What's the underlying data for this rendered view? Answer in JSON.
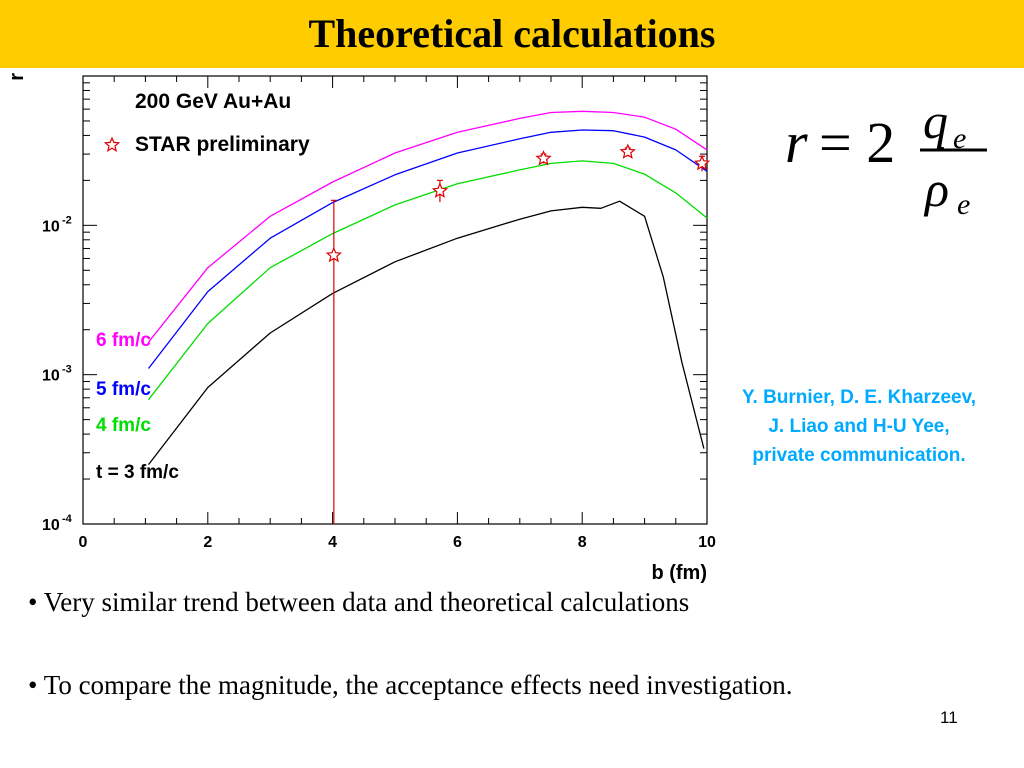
{
  "slide": {
    "title": "Theoretical calculations",
    "formula": {
      "lhs": "r",
      "equals": "= 2",
      "numerator": "q",
      "numerator_sub": "e",
      "denominator": "ρ",
      "denominator_sub": "e"
    },
    "credit": [
      "Y. Burnier, D. E. Kharzeev,",
      "J. Liao and H-U Yee,",
      "private communication."
    ],
    "bullets": [
      "• Very similar trend between data and theoretical calculations",
      "• To compare the magnitude, the acceptance effects need investigation."
    ],
    "page_number": "11"
  },
  "chart_data": {
    "type": "line",
    "title": "",
    "xlabel": "b (fm)",
    "ylabel": "r",
    "xlim": [
      0,
      10
    ],
    "ylim": [
      0.0001,
      0.1
    ],
    "yscale": "log",
    "x_ticks": [
      "0",
      "2",
      "4",
      "6",
      "8",
      "10"
    ],
    "y_ticks": [
      {
        "value": 0.01,
        "base": "10",
        "exp": "-2"
      },
      {
        "value": 0.001,
        "base": "10",
        "exp": "-3"
      },
      {
        "value": 0.0001,
        "base": "10",
        "exp": "-4"
      }
    ],
    "annotations": [
      "200 GeV Au+Au"
    ],
    "series": [
      {
        "name": "6 fm/c",
        "color": "#FF00FF",
        "x": [
          1.05,
          2,
          3,
          4,
          5,
          6,
          7,
          7.5,
          8,
          8.5,
          9,
          9.5,
          10
        ],
        "y": [
          0.00165,
          0.0052,
          0.0115,
          0.0195,
          0.0305,
          0.042,
          0.052,
          0.057,
          0.058,
          0.057,
          0.053,
          0.044,
          0.032
        ]
      },
      {
        "name": "5 fm/c",
        "color": "#0000FF",
        "x": [
          1.05,
          2,
          3,
          4,
          5,
          6,
          7,
          7.5,
          8,
          8.5,
          9,
          9.5,
          10
        ],
        "y": [
          0.0011,
          0.0036,
          0.0082,
          0.0142,
          0.0218,
          0.0305,
          0.038,
          0.042,
          0.0435,
          0.043,
          0.039,
          0.032,
          0.023
        ]
      },
      {
        "name": "4 fm/c",
        "color": "#00DD00",
        "x": [
          1.05,
          2,
          3,
          4,
          5,
          6,
          7,
          7.5,
          8,
          8.5,
          9,
          9.5,
          10
        ],
        "y": [
          0.00068,
          0.0022,
          0.0052,
          0.0088,
          0.0137,
          0.019,
          0.0235,
          0.026,
          0.027,
          0.026,
          0.022,
          0.0165,
          0.0112
        ]
      },
      {
        "name": "t = 3 fm/c",
        "color": "#000000",
        "x": [
          1.05,
          2,
          3,
          4,
          5,
          6,
          7,
          7.5,
          8,
          8.3,
          8.6,
          9,
          9.3,
          9.6,
          9.95
        ],
        "y": [
          0.00025,
          0.00082,
          0.0019,
          0.0035,
          0.0057,
          0.0082,
          0.011,
          0.0125,
          0.0132,
          0.013,
          0.0145,
          0.0115,
          0.0045,
          0.0012,
          0.00032
        ]
      },
      {
        "name": "STAR preliminary",
        "color": "#DD0000",
        "marker": "star",
        "x": [
          4.02,
          5.72,
          7.38,
          8.73,
          9.92
        ],
        "y": [
          0.0063,
          0.017,
          0.028,
          0.031,
          0.026
        ],
        "yerr_low": [
          0.0063,
          0.0027,
          0.002,
          0.002,
          0.003
        ],
        "yerr_high": [
          0.0084,
          0.003,
          0.002,
          0.002,
          0.003
        ]
      }
    ]
  }
}
